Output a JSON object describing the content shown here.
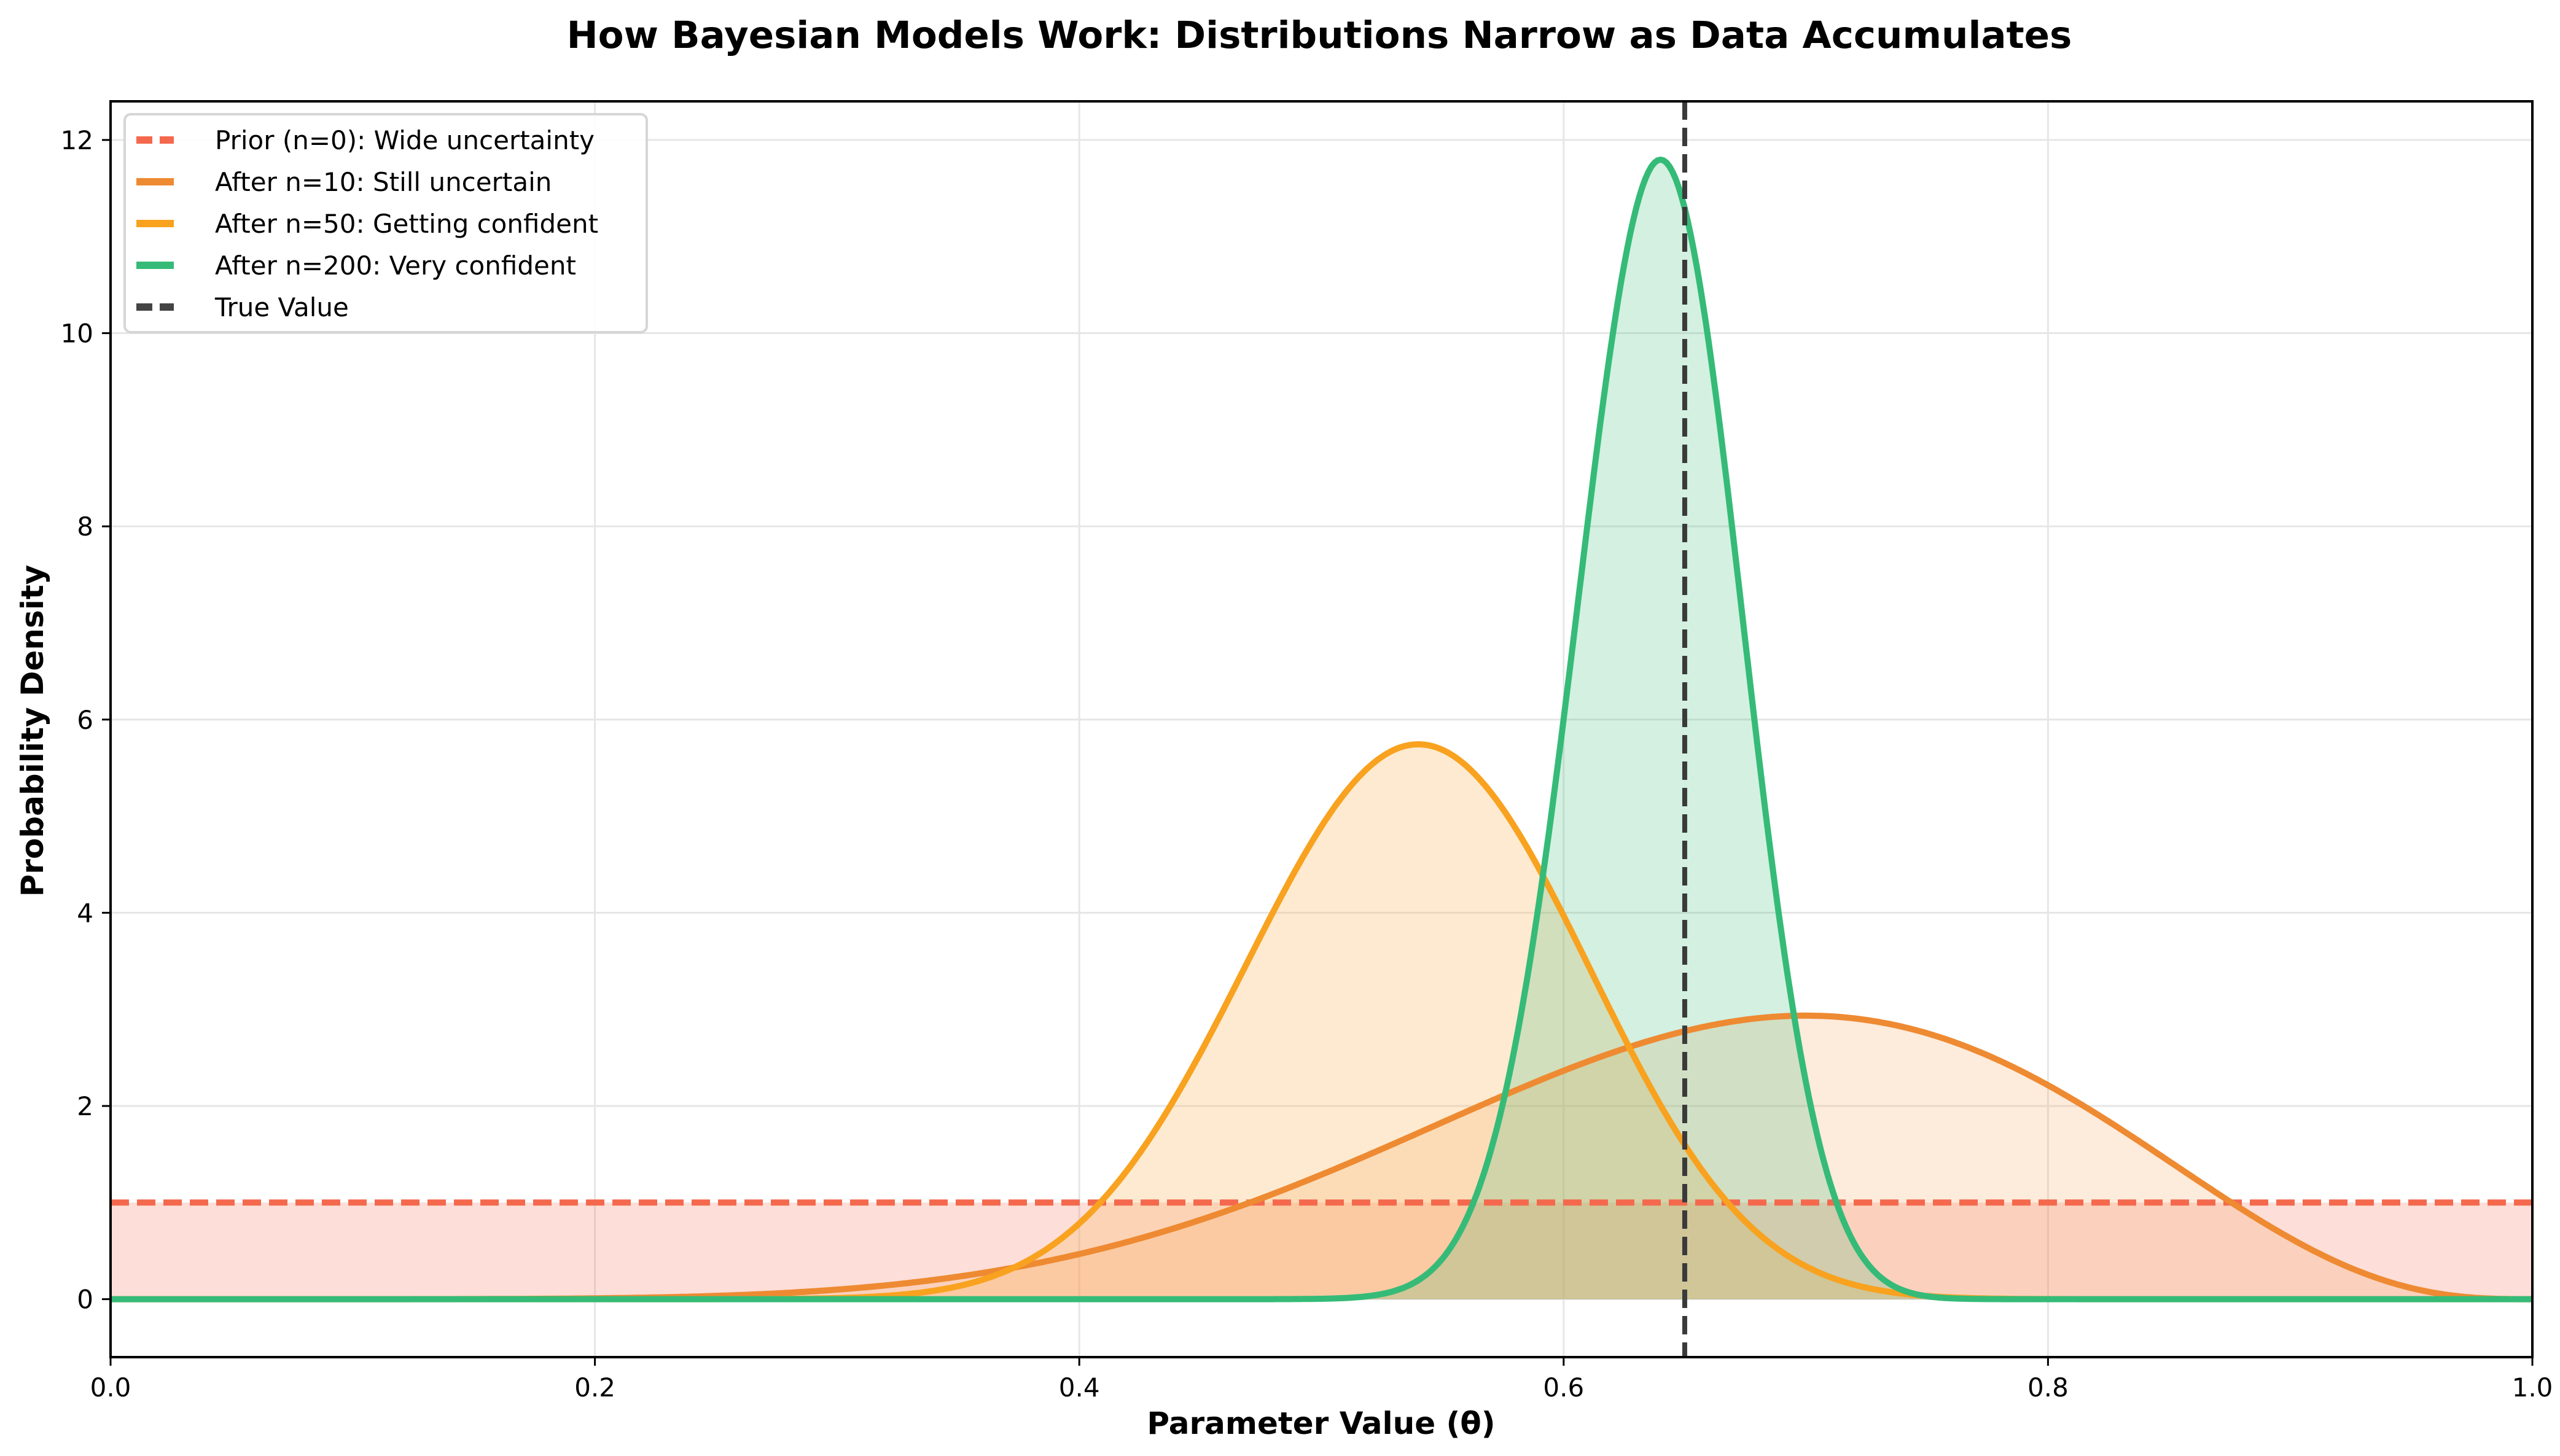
{
  "chart_data": {
    "type": "line",
    "title": "How Bayesian Models Work: Distributions Narrow as Data Accumulates",
    "xlabel": "Parameter Value (θ)",
    "ylabel": "Probability Density",
    "xlim": [
      0.0,
      1.0
    ],
    "ylim": [
      -0.6,
      12.4
    ],
    "xticks": [
      "0.0",
      "0.2",
      "0.4",
      "0.6",
      "0.8",
      "1.0"
    ],
    "xtick_values": [
      0.0,
      0.2,
      0.4,
      0.6,
      0.8,
      1.0
    ],
    "yticks": [
      "0",
      "2",
      "4",
      "6",
      "8",
      "10",
      "12"
    ],
    "ytick_values": [
      0,
      2,
      4,
      6,
      8,
      10,
      12
    ],
    "grid": true,
    "legend_position": "upper left",
    "series": [
      {
        "name": "Prior (n=0): Wide uncertainty",
        "color": "#F4694D",
        "fill": "#F4694D",
        "style": "dashed",
        "distribution": "Beta(1,1)",
        "alpha": 1,
        "beta": 1,
        "peak_x": null,
        "peak_y": 1.0
      },
      {
        "name": "After n=10: Still uncertain",
        "color": "#EE8A32",
        "fill": "#F4A261",
        "style": "solid",
        "distribution": "Beta(8,4)",
        "alpha": 8,
        "beta": 4,
        "peak_x": 0.7,
        "peak_y": 2.95
      },
      {
        "name": "After n=50: Getting confident",
        "color": "#F8A21F",
        "fill": "#FDB863",
        "style": "solid",
        "distribution": "Beta(28,24)",
        "alpha": 28,
        "beta": 24,
        "peak_x": 0.54,
        "peak_y": 5.75
      },
      {
        "name": "After n=200: Very confident",
        "color": "#35BB77",
        "fill": "#35BB77",
        "style": "solid",
        "distribution": "Beta(129,73)",
        "alpha": 129,
        "beta": 73,
        "peak_x": 0.64,
        "peak_y": 11.8
      }
    ],
    "annotations": [
      {
        "name": "True Value",
        "type": "vline",
        "x": 0.65,
        "color": "#3A3A3A",
        "style": "dashed"
      }
    ]
  },
  "legend": {
    "items": [
      {
        "label": "Prior (n=0): Wide uncertainty",
        "color": "#F4694D",
        "style": "dashed"
      },
      {
        "label": "After n=10: Still uncertain",
        "color": "#EE8A32",
        "style": "solid"
      },
      {
        "label": "After n=50: Getting confident",
        "color": "#F8A21F",
        "style": "solid"
      },
      {
        "label": "After n=200: Very confident",
        "color": "#35BB77",
        "style": "solid"
      },
      {
        "label": "True Value",
        "color": "#444444",
        "style": "dashed"
      }
    ]
  }
}
